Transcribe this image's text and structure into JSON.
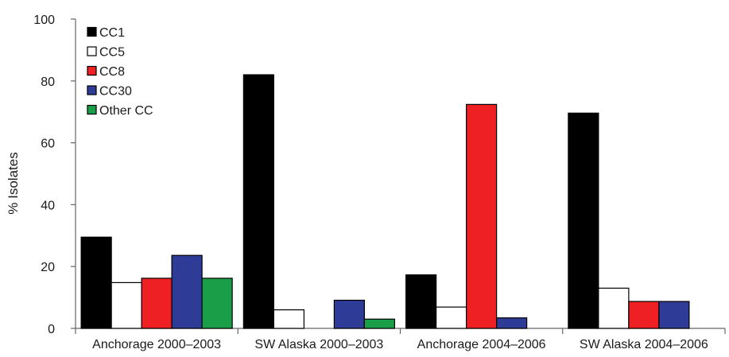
{
  "chart_data": {
    "type": "bar",
    "ylabel": "% Isolates",
    "ylim": [
      0,
      100
    ],
    "yticks": [
      "0",
      "20",
      "40",
      "60",
      "80",
      "100"
    ],
    "grid": false,
    "legend_position": "top-left",
    "categories": [
      "Anchorage 2000–2003",
      "SW Alaska 2000–2003",
      "Anchorage 2004–2006",
      "SW Alaska 2004–2006"
    ],
    "series": [
      {
        "name": "CC1",
        "color": "#000000",
        "values": [
          29.5,
          82,
          17.3,
          69.6
        ]
      },
      {
        "name": "CC5",
        "color": "#ffffff",
        "values": [
          14.8,
          6,
          6.9,
          13
        ]
      },
      {
        "name": "CC8",
        "color": "#ee2024",
        "values": [
          16.2,
          0,
          72.4,
          8.7
        ]
      },
      {
        "name": "CC30",
        "color": "#2e3b97",
        "values": [
          23.6,
          9.1,
          3.4,
          8.7
        ]
      },
      {
        "name": "Other CC",
        "color": "#1a9e48",
        "values": [
          16.2,
          3,
          0,
          0
        ]
      }
    ]
  }
}
